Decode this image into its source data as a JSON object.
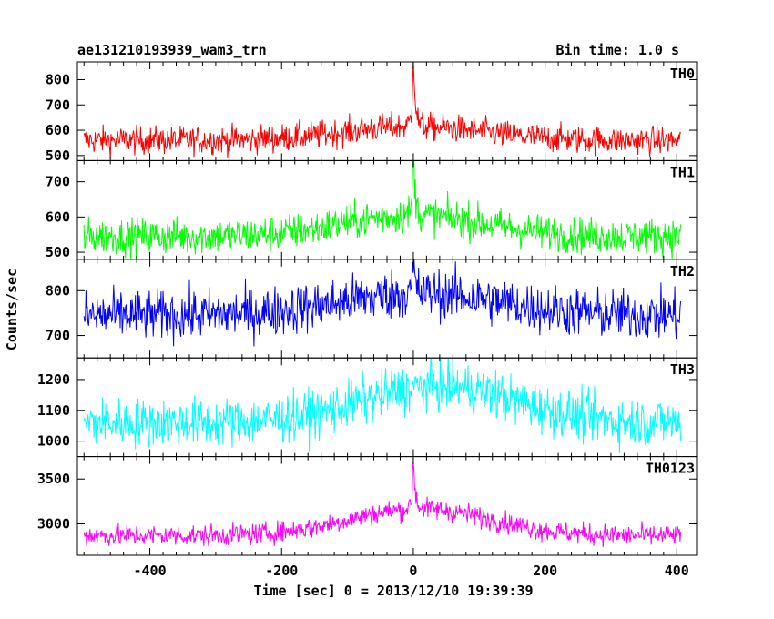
{
  "header": {
    "title": "ae131210193939_wam3_trn",
    "bin_time": "Bin time: 1.0 s"
  },
  "chart_data": {
    "type": "line",
    "xlabel": "Time [sec] 0 = 2013/12/10 19:39:39",
    "ylabel": "Counts/sec",
    "xlim": [
      -510,
      430
    ],
    "x_range": [
      -500,
      406
    ],
    "x_ticks": [
      -400,
      -200,
      0,
      200,
      400
    ],
    "panels": [
      {
        "name": "TH0",
        "color": "#ff0000",
        "ylim": [
          480,
          870
        ],
        "y_ticks": [
          500,
          600,
          700,
          800
        ],
        "baseline": 560,
        "bump": 55,
        "noise": 28,
        "spike": 300,
        "bump_width": 150,
        "bump_center": 0
      },
      {
        "name": "TH1",
        "color": "#00ff00",
        "ylim": [
          480,
          760
        ],
        "y_ticks": [
          500,
          600,
          700
        ],
        "baseline": 545,
        "bump": 60,
        "noise": 26,
        "spike": 170,
        "bump_width": 150,
        "bump_center": 0
      },
      {
        "name": "TH2",
        "color": "#0000ff",
        "ylim": [
          650,
          870
        ],
        "y_ticks": [
          700,
          800
        ],
        "baseline": 745,
        "bump": 50,
        "noise": 28,
        "spike": 60,
        "bump_width": 170,
        "bump_center": 10
      },
      {
        "name": "TH3",
        "color": "#00ffff",
        "ylim": [
          950,
          1270
        ],
        "y_ticks": [
          1000,
          1100,
          1200
        ],
        "baseline": 1060,
        "bump": 120,
        "noise": 40,
        "spike": 0,
        "bump_width": 160,
        "bump_center": 40
      },
      {
        "name": "TH0123",
        "color": "#ff00ff",
        "ylim": [
          2650,
          3750
        ],
        "y_ticks": [
          3000,
          3500
        ],
        "baseline": 2870,
        "bump": 300,
        "noise": 60,
        "spike": 550,
        "bump_width": 150,
        "bump_center": 10
      }
    ]
  }
}
